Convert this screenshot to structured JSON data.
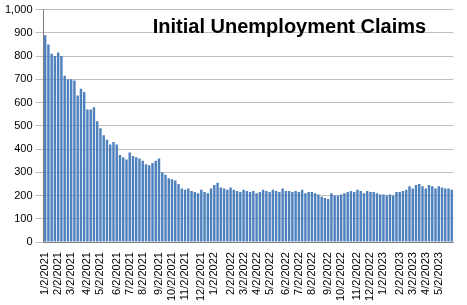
{
  "chart_data": {
    "type": "bar",
    "title": "Initial Unemployment Claims",
    "categories": [
      "1/2/2021",
      null,
      null,
      null,
      "2/2/2021",
      null,
      null,
      null,
      "3/2/2021",
      null,
      null,
      null,
      null,
      "4/2/2021",
      null,
      null,
      null,
      "5/2/2021",
      null,
      null,
      null,
      null,
      "6/2/2021",
      null,
      null,
      null,
      "7/2/2021",
      null,
      null,
      null,
      "8/2/2021",
      null,
      null,
      null,
      null,
      "9/2/2021",
      null,
      null,
      null,
      "10/2/2021",
      null,
      null,
      null,
      "11/2/2021",
      null,
      null,
      null,
      null,
      "12/2/2021",
      null,
      null,
      null,
      "1/2/2022",
      null,
      null,
      null,
      null,
      "2/2/2022",
      null,
      null,
      null,
      "3/2/2022",
      null,
      null,
      null,
      "4/2/2022",
      null,
      null,
      null,
      "5/2/2022",
      null,
      null,
      null,
      null,
      "6/2/2022",
      null,
      null,
      null,
      "7/2/2022",
      null,
      null,
      null,
      "8/2/2022",
      null,
      null,
      null,
      null,
      "9/2/2022",
      null,
      null,
      null,
      "10/2/2022",
      null,
      null,
      null,
      null,
      "11/2/2022",
      null,
      null,
      null,
      "12/2/2022",
      null,
      null,
      null,
      "1/2/2023",
      null,
      null,
      null,
      null,
      "2/2/2023",
      null,
      null,
      null,
      "3/2/2023",
      null,
      null,
      null,
      "4/2/2023",
      null,
      null,
      null,
      "5/2/2023",
      null,
      null,
      null,
      null
    ],
    "values": [
      890,
      850,
      810,
      800,
      815,
      800,
      715,
      700,
      700,
      695,
      630,
      660,
      645,
      570,
      570,
      580,
      520,
      490,
      460,
      440,
      420,
      430,
      420,
      375,
      365,
      355,
      385,
      370,
      365,
      360,
      350,
      335,
      330,
      340,
      350,
      360,
      300,
      290,
      275,
      270,
      265,
      250,
      230,
      225,
      230,
      220,
      215,
      210,
      225,
      215,
      210,
      230,
      245,
      255,
      235,
      230,
      225,
      235,
      225,
      220,
      215,
      225,
      220,
      215,
      220,
      210,
      215,
      225,
      220,
      215,
      225,
      220,
      215,
      230,
      220,
      220,
      215,
      220,
      215,
      225,
      210,
      215,
      215,
      210,
      205,
      195,
      190,
      185,
      210,
      200,
      200,
      205,
      210,
      215,
      220,
      215,
      225,
      220,
      210,
      220,
      215,
      215,
      210,
      205,
      205,
      200,
      205,
      200,
      215,
      215,
      220,
      225,
      240,
      230,
      245,
      250,
      240,
      230,
      245,
      240,
      230,
      240,
      235,
      230,
      230,
      225
    ],
    "color": "#4f81bd",
    "ylim": [
      0,
      1000
    ],
    "yticks": [
      0,
      100,
      200,
      300,
      400,
      500,
      600,
      700,
      800,
      900,
      {
        "value": 1000,
        "label": "1,000"
      }
    ],
    "grid": true
  }
}
